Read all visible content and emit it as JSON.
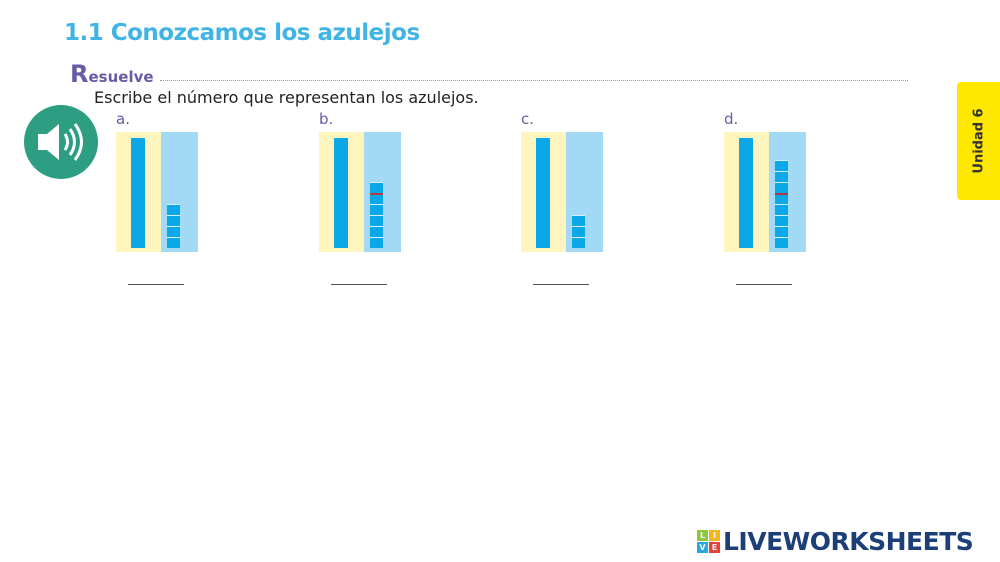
{
  "header": {
    "title": "1.1 Conozcamos los azulejos"
  },
  "section": {
    "label_initial": "R",
    "label_rest": "esuelve",
    "instruction": "Escribe el número que representan los azulejos."
  },
  "audio_button": {
    "icon": "speaker-icon",
    "color": "#2e9e82"
  },
  "side_tab": {
    "label": "Unidad 6",
    "color": "#ffe800"
  },
  "exercises": [
    {
      "label": "a.",
      "tens": 1,
      "units": 4,
      "red_after": -1,
      "answer": ""
    },
    {
      "label": "b.",
      "tens": 1,
      "units": 6,
      "red_after": 1,
      "answer": ""
    },
    {
      "label": "c.",
      "tens": 1,
      "units": 3,
      "red_after": -1,
      "answer": ""
    },
    {
      "label": "d.",
      "tens": 1,
      "units": 8,
      "red_after": 3,
      "answer": ""
    }
  ],
  "colors": {
    "title": "#3fb4e5",
    "tile": "#0aa8e6",
    "tens_bg": "#fdf5bd",
    "units_bg": "#a2daf6",
    "accent": "#6a5ba8"
  },
  "footer": {
    "logo_text": "LIVEWORKSHEETS",
    "logo_letters": [
      "L",
      "I",
      "V",
      "E"
    ]
  }
}
